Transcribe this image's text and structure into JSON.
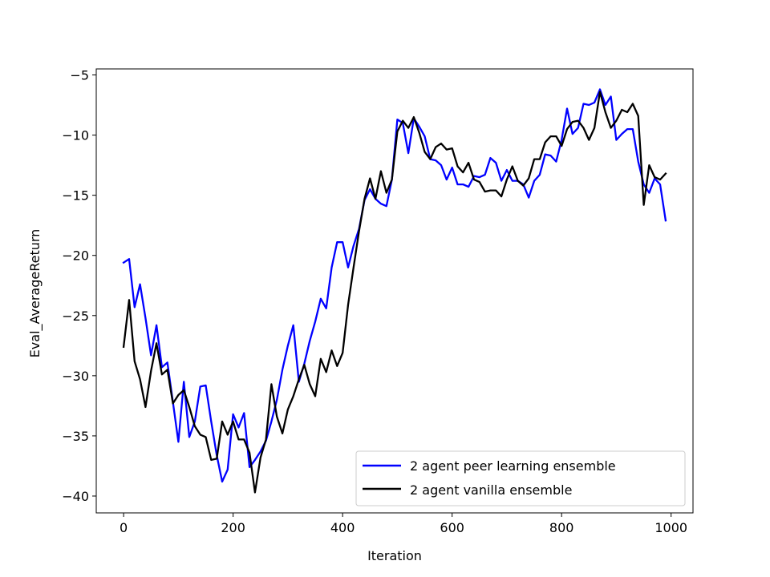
{
  "chart_data": {
    "type": "line",
    "title": "",
    "xlabel": "Iteration",
    "ylabel": "Eval_AverageReturn",
    "xlim": [
      -50,
      1040
    ],
    "ylim": [
      -41.4,
      -4.5
    ],
    "xticks": [
      0,
      200,
      400,
      600,
      800,
      1000
    ],
    "yticks": [
      -5,
      -10,
      -15,
      -20,
      -25,
      -30,
      -35,
      -40
    ],
    "grid": false,
    "legend_position": "lower-right",
    "x": [
      0,
      10,
      20,
      30,
      40,
      50,
      60,
      70,
      80,
      90,
      100,
      110,
      120,
      130,
      140,
      150,
      160,
      170,
      180,
      190,
      200,
      210,
      220,
      230,
      240,
      250,
      260,
      270,
      280,
      290,
      300,
      310,
      320,
      330,
      340,
      350,
      360,
      370,
      380,
      390,
      400,
      410,
      420,
      430,
      440,
      450,
      460,
      470,
      480,
      490,
      500,
      510,
      520,
      530,
      540,
      550,
      560,
      570,
      580,
      590,
      600,
      610,
      620,
      630,
      640,
      650,
      660,
      670,
      680,
      690,
      700,
      710,
      720,
      730,
      740,
      750,
      760,
      770,
      780,
      790,
      800,
      810,
      820,
      830,
      840,
      850,
      860,
      870,
      880,
      890,
      900,
      910,
      920,
      930,
      940,
      950,
      960,
      970,
      980,
      990
    ],
    "series": [
      {
        "name": "2 agent peer learning ensemble",
        "color": "#0000ff",
        "values": [
          -20.6,
          -20.3,
          -24.3,
          -22.4,
          -25.2,
          -28.3,
          -25.8,
          -29.3,
          -28.9,
          -32.2,
          -35.5,
          -30.5,
          -35.1,
          -33.8,
          -30.9,
          -30.8,
          -33.8,
          -36.6,
          -38.8,
          -37.8,
          -33.2,
          -34.3,
          -33.1,
          -37.6,
          -37.0,
          -36.3,
          -35.4,
          -33.8,
          -32.0,
          -29.5,
          -27.5,
          -25.8,
          -30.5,
          -29.0,
          -27.1,
          -25.5,
          -23.6,
          -24.4,
          -21.0,
          -18.9,
          -18.9,
          -21.0,
          -19.2,
          -17.8,
          -15.4,
          -14.5,
          -15.3,
          -15.7,
          -15.9,
          -13.7,
          -8.7,
          -9.0,
          -11.5,
          -8.6,
          -9.3,
          -10.1,
          -12.0,
          -12.1,
          -12.5,
          -13.7,
          -12.7,
          -14.1,
          -14.1,
          -14.3,
          -13.4,
          -13.5,
          -13.3,
          -11.9,
          -12.3,
          -13.8,
          -12.9,
          -13.8,
          -13.8,
          -14.1,
          -15.2,
          -13.8,
          -13.3,
          -11.6,
          -11.7,
          -12.2,
          -10.4,
          -7.8,
          -9.9,
          -9.4,
          -7.4,
          -7.5,
          -7.3,
          -6.2,
          -7.5,
          -6.8,
          -10.4,
          -9.9,
          -9.5,
          -9.5,
          -12.2,
          -14.1,
          -14.8,
          -13.6,
          -14.1,
          -17.1
        ]
      },
      {
        "name": "2 agent vanilla ensemble",
        "color": "#000000",
        "values": [
          -27.6,
          -23.7,
          -28.8,
          -30.3,
          -32.6,
          -29.6,
          -27.3,
          -29.9,
          -29.5,
          -32.3,
          -31.6,
          -31.2,
          -32.6,
          -34.2,
          -34.9,
          -35.1,
          -37.0,
          -36.9,
          -33.8,
          -34.9,
          -33.8,
          -35.3,
          -35.3,
          -36.4,
          -39.7,
          -36.8,
          -35.3,
          -30.7,
          -33.4,
          -34.8,
          -32.8,
          -31.7,
          -30.3,
          -29.1,
          -30.7,
          -31.7,
          -28.6,
          -29.7,
          -27.9,
          -29.2,
          -28.1,
          -24.1,
          -21.0,
          -18.0,
          -15.3,
          -13.6,
          -15.3,
          -13.0,
          -14.8,
          -13.7,
          -9.7,
          -8.8,
          -9.4,
          -8.5,
          -9.8,
          -11.4,
          -12.0,
          -11.0,
          -10.7,
          -11.2,
          -11.1,
          -12.6,
          -13.1,
          -12.3,
          -13.7,
          -13.9,
          -14.7,
          -14.6,
          -14.6,
          -15.1,
          -13.7,
          -12.6,
          -13.8,
          -14.2,
          -13.6,
          -12.0,
          -12.0,
          -10.6,
          -10.1,
          -10.1,
          -10.9,
          -9.5,
          -8.9,
          -8.8,
          -9.4,
          -10.4,
          -9.4,
          -6.4,
          -8.1,
          -9.4,
          -8.8,
          -7.9,
          -8.1,
          -7.4,
          -8.4,
          -15.8,
          -12.5,
          -13.5,
          -13.7,
          -13.2
        ]
      }
    ]
  }
}
